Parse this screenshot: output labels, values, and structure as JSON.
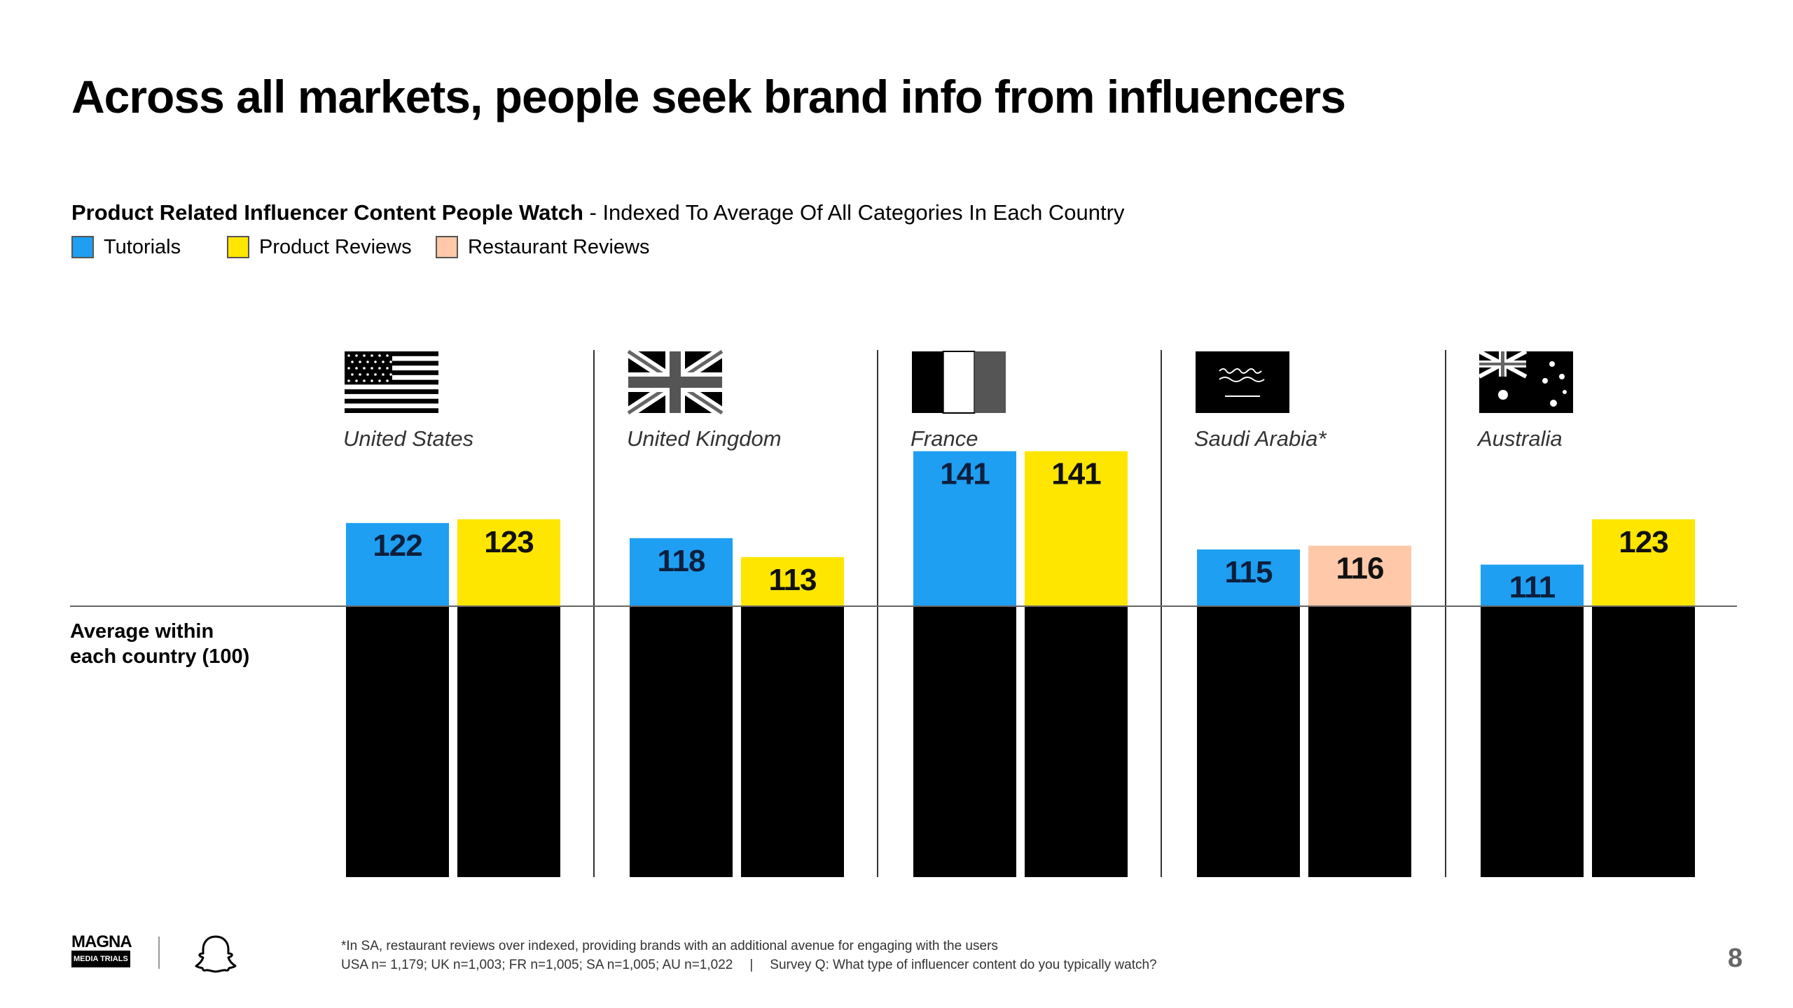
{
  "title": "Across all markets, people seek brand info from influencers",
  "subtitle": {
    "bold": "Product Related Influencer Content People Watch",
    "rest": " - Indexed To Average Of All Categories In Each Country"
  },
  "legend": [
    {
      "label": "Tutorials",
      "color": "#1e9ff2"
    },
    {
      "label": "Product Reviews",
      "color": "#ffe600"
    },
    {
      "label": "Restaurant Reviews",
      "color": "#ffc8a8"
    }
  ],
  "baseline": {
    "line1": "Average within",
    "line2": "each country (100)"
  },
  "chart_data": {
    "type": "bar",
    "title": "Product Related Influencer Content People Watch - Indexed To Average Of All Categories In Each Country",
    "baseline_value": 100,
    "ylim": [
      0,
      150
    ],
    "categories": [
      "United States",
      "United Kingdom",
      "France",
      "Saudi Arabia*",
      "Australia"
    ],
    "flags": [
      "us-flag",
      "uk-flag",
      "france-flag",
      "saudi-flag",
      "australia-flag"
    ],
    "groups": [
      {
        "country": "United States",
        "bars": [
          {
            "series": "Tutorials",
            "value": 122
          },
          {
            "series": "Product Reviews",
            "value": 123
          }
        ]
      },
      {
        "country": "United Kingdom",
        "bars": [
          {
            "series": "Tutorials",
            "value": 118
          },
          {
            "series": "Product Reviews",
            "value": 113
          }
        ]
      },
      {
        "country": "France",
        "bars": [
          {
            "series": "Tutorials",
            "value": 141
          },
          {
            "series": "Product Reviews",
            "value": 141
          }
        ]
      },
      {
        "country": "Saudi Arabia*",
        "bars": [
          {
            "series": "Tutorials",
            "value": 115
          },
          {
            "series": "Restaurant Reviews",
            "value": 116
          }
        ]
      },
      {
        "country": "Australia",
        "bars": [
          {
            "series": "Tutorials",
            "value": 111
          },
          {
            "series": "Product Reviews",
            "value": 123
          }
        ]
      }
    ],
    "series_colors": {
      "Tutorials": "#1e9ff2",
      "Product Reviews": "#ffe600",
      "Restaurant Reviews": "#ffc8a8"
    }
  },
  "footer": {
    "logo_main": "MAGNA",
    "logo_sub": "MEDIA TRIALS",
    "brand_icon": "ghost-icon",
    "note1": "*In SA, restaurant reviews over indexed, providing brands with an additional avenue for engaging with the users",
    "note2_samples": "USA n= 1,179; UK n=1,003; FR n=1,005; SA n=1,005; AU n=1,022",
    "note2_separator": "|",
    "note2_question": "Survey Q: What type of influencer content do you typically watch?",
    "page_number": "8"
  }
}
